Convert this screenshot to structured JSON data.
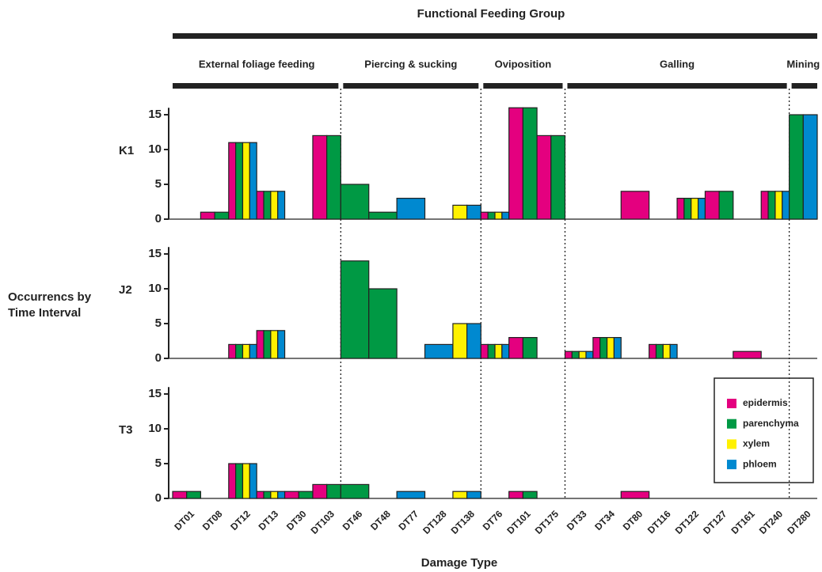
{
  "chart_data": {
    "type": "bar",
    "title": "Functional Feeding Group",
    "xlabel": "Damage Type",
    "ylabel": "Occurrencs by Time Interval",
    "ylim": [
      0,
      16
    ],
    "yticks": [
      0,
      5,
      10,
      15
    ],
    "groups": [
      {
        "label": "External foliage feeding",
        "categories": [
          "DT01",
          "DT08",
          "DT12",
          "DT13",
          "DT30",
          "DT103"
        ]
      },
      {
        "label": "Piercing & sucking",
        "categories": [
          "DT46",
          "DT48",
          "DT77",
          "DT128",
          "DT138"
        ]
      },
      {
        "label": "Oviposition",
        "categories": [
          "DT76",
          "DT101",
          "DT175"
        ]
      },
      {
        "label": "Galling",
        "categories": [
          "DT33",
          "DT34",
          "DT80",
          "DT116",
          "DT122",
          "DT127",
          "DT161",
          "DT240"
        ]
      },
      {
        "label": "Mining",
        "categories": [
          "DT280"
        ]
      }
    ],
    "series": [
      {
        "name": "epidermis",
        "color": "#e4007f"
      },
      {
        "name": "parenchyma",
        "color": "#009944"
      },
      {
        "name": "xylem",
        "color": "#fff100"
      },
      {
        "name": "phloem",
        "color": "#0089d0"
      }
    ],
    "panels": [
      {
        "label": "K1",
        "series_values": [
          [
            null,
            1,
            11,
            4,
            null,
            12,
            null,
            null,
            null,
            null,
            null,
            1,
            16,
            12,
            null,
            null,
            4,
            null,
            3,
            4,
            null,
            4,
            null
          ],
          [
            null,
            1,
            11,
            4,
            null,
            12,
            5,
            1,
            null,
            null,
            null,
            1,
            16,
            12,
            null,
            null,
            null,
            null,
            3,
            4,
            null,
            4,
            15
          ],
          [
            null,
            null,
            11,
            4,
            null,
            null,
            null,
            null,
            null,
            null,
            2,
            1,
            null,
            null,
            null,
            null,
            null,
            null,
            3,
            null,
            null,
            4,
            null
          ],
          [
            null,
            null,
            11,
            4,
            null,
            null,
            null,
            null,
            3,
            null,
            2,
            1,
            null,
            null,
            null,
            null,
            null,
            null,
            3,
            null,
            null,
            4,
            15
          ]
        ]
      },
      {
        "label": "J2",
        "series_values": [
          [
            null,
            null,
            2,
            4,
            null,
            null,
            null,
            null,
            null,
            null,
            null,
            2,
            3,
            null,
            1,
            3,
            null,
            2,
            null,
            null,
            1,
            null,
            null
          ],
          [
            null,
            null,
            2,
            4,
            null,
            null,
            14,
            10,
            null,
            null,
            null,
            2,
            3,
            null,
            1,
            3,
            null,
            2,
            null,
            null,
            null,
            null,
            null
          ],
          [
            null,
            null,
            2,
            4,
            null,
            null,
            null,
            null,
            null,
            null,
            5,
            2,
            null,
            null,
            1,
            3,
            null,
            2,
            null,
            null,
            null,
            null,
            null
          ],
          [
            null,
            null,
            2,
            4,
            null,
            null,
            null,
            null,
            null,
            2,
            5,
            2,
            null,
            null,
            1,
            3,
            null,
            2,
            null,
            null,
            null,
            null,
            null
          ]
        ]
      },
      {
        "label": "T3",
        "series_values": [
          [
            1,
            null,
            5,
            1,
            1,
            2,
            null,
            null,
            null,
            null,
            null,
            null,
            1,
            null,
            null,
            null,
            1,
            null,
            null,
            null,
            null,
            null,
            null
          ],
          [
            1,
            null,
            5,
            1,
            1,
            2,
            2,
            null,
            null,
            null,
            null,
            null,
            1,
            null,
            null,
            null,
            null,
            null,
            null,
            null,
            null,
            null,
            null
          ],
          [
            null,
            null,
            5,
            1,
            null,
            null,
            null,
            null,
            null,
            null,
            1,
            null,
            null,
            null,
            null,
            null,
            null,
            null,
            null,
            null,
            null,
            null,
            null
          ],
          [
            null,
            null,
            5,
            1,
            null,
            null,
            null,
            null,
            1,
            null,
            1,
            null,
            null,
            null,
            null,
            null,
            null,
            null,
            null,
            null,
            null,
            null,
            null
          ]
        ]
      }
    ]
  }
}
